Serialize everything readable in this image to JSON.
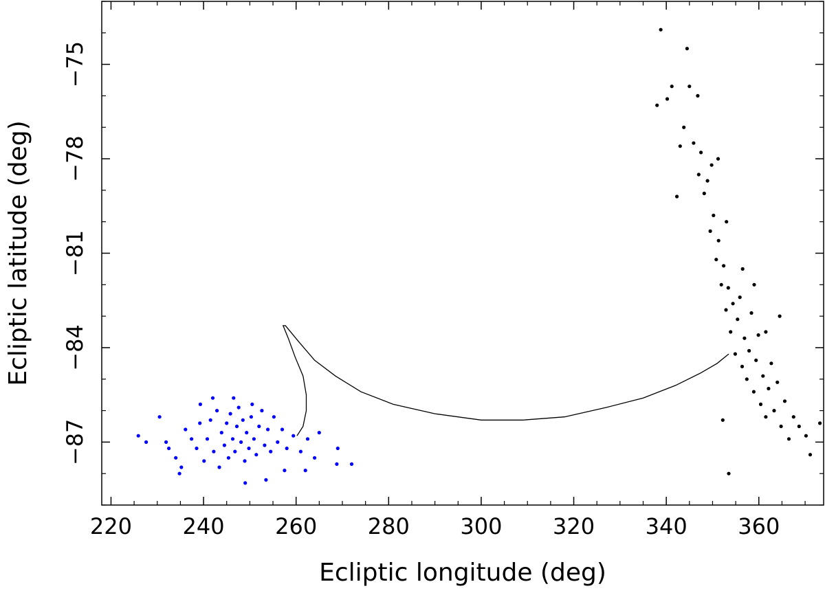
{
  "chart_data": {
    "type": "scatter",
    "title": "",
    "xlabel": "Ecliptic longitude (deg)",
    "ylabel": "Ecliptic latitude (deg)",
    "xlim": [
      218,
      374
    ],
    "ylim": [
      -89.0,
      -73.0
    ],
    "y_inverted": true,
    "grid": false,
    "xticks": [
      220,
      240,
      260,
      280,
      300,
      320,
      340,
      360
    ],
    "xtick_labels": [
      "220",
      "240",
      "260",
      "280",
      "300",
      "320",
      "340",
      "360"
    ],
    "yticks": [
      -75,
      -78,
      -81,
      -84,
      -87
    ],
    "ytick_labels": [
      "−75",
      "−78",
      "−81",
      "−84",
      "−87"
    ],
    "colors": {
      "blue_cluster": "#0000ff",
      "black_cluster": "#000000",
      "track": "#000000"
    },
    "series": [
      {
        "kind": "points",
        "color": "#0000ff",
        "points": [
          [
            225.9,
            -86.8
          ],
          [
            227.6,
            -87.0
          ],
          [
            231.9,
            -87.0
          ],
          [
            232.5,
            -87.2
          ],
          [
            234.0,
            -87.5
          ],
          [
            235.2,
            -87.8
          ],
          [
            236.1,
            -86.6
          ],
          [
            237.4,
            -86.9
          ],
          [
            238.5,
            -87.2
          ],
          [
            239.2,
            -86.4
          ],
          [
            240.1,
            -87.6
          ],
          [
            240.8,
            -86.9
          ],
          [
            241.5,
            -86.3
          ],
          [
            242.2,
            -87.3
          ],
          [
            242.9,
            -86.0
          ],
          [
            243.4,
            -87.8
          ],
          [
            243.9,
            -86.7
          ],
          [
            244.5,
            -87.1
          ],
          [
            245.0,
            -86.4
          ],
          [
            245.4,
            -87.5
          ],
          [
            245.8,
            -86.1
          ],
          [
            246.3,
            -86.9
          ],
          [
            246.8,
            -87.3
          ],
          [
            247.2,
            -86.5
          ],
          [
            247.6,
            -85.9
          ],
          [
            248.1,
            -87.0
          ],
          [
            248.5,
            -86.3
          ],
          [
            248.9,
            -87.6
          ],
          [
            249.3,
            -86.7
          ],
          [
            249.8,
            -87.2
          ],
          [
            250.3,
            -86.2
          ],
          [
            250.9,
            -86.9
          ],
          [
            251.4,
            -87.4
          ],
          [
            252.0,
            -86.5
          ],
          [
            252.6,
            -86.0
          ],
          [
            253.2,
            -87.1
          ],
          [
            253.9,
            -86.6
          ],
          [
            254.5,
            -87.3
          ],
          [
            255.2,
            -86.2
          ],
          [
            256.0,
            -87.0
          ],
          [
            257.0,
            -86.6
          ],
          [
            258.0,
            -87.2
          ],
          [
            259.4,
            -86.8
          ],
          [
            261.0,
            -87.3
          ],
          [
            262.5,
            -86.9
          ],
          [
            264.0,
            -87.5
          ],
          [
            265.0,
            -86.7
          ],
          [
            269.0,
            -87.2
          ],
          [
            272.0,
            -87.7
          ],
          [
            268.8,
            -87.7
          ],
          [
            239.3,
            -85.8
          ],
          [
            242.0,
            -85.6
          ],
          [
            246.5,
            -85.6
          ],
          [
            250.5,
            -85.8
          ],
          [
            234.8,
            -88.0
          ],
          [
            249.0,
            -88.3
          ],
          [
            253.5,
            -88.2
          ],
          [
            257.5,
            -87.9
          ],
          [
            262.0,
            -87.9
          ],
          [
            230.5,
            -86.2
          ]
        ]
      },
      {
        "kind": "points",
        "color": "#000000",
        "points": [
          [
            338.0,
            -76.3
          ],
          [
            338.8,
            -73.9
          ],
          [
            340.2,
            -76.1
          ],
          [
            341.2,
            -75.7
          ],
          [
            342.3,
            -79.2
          ],
          [
            343.0,
            -77.6
          ],
          [
            343.8,
            -77.0
          ],
          [
            344.5,
            -74.5
          ],
          [
            345.0,
            -75.7
          ],
          [
            345.9,
            -77.5
          ],
          [
            346.8,
            -76.0
          ],
          [
            347.5,
            -77.8
          ],
          [
            348.2,
            -79.1
          ],
          [
            348.9,
            -78.7
          ],
          [
            349.5,
            -80.3
          ],
          [
            350.2,
            -79.8
          ],
          [
            350.8,
            -81.2
          ],
          [
            351.3,
            -80.6
          ],
          [
            351.9,
            -82.0
          ],
          [
            352.4,
            -81.4
          ],
          [
            352.9,
            -82.8
          ],
          [
            353.4,
            -82.1
          ],
          [
            353.9,
            -83.5
          ],
          [
            354.4,
            -82.6
          ],
          [
            354.9,
            -84.2
          ],
          [
            355.4,
            -83.1
          ],
          [
            355.9,
            -82.4
          ],
          [
            356.4,
            -84.6
          ],
          [
            356.9,
            -83.7
          ],
          [
            357.4,
            -85.0
          ],
          [
            357.9,
            -84.1
          ],
          [
            358.4,
            -82.9
          ],
          [
            358.9,
            -85.4
          ],
          [
            359.4,
            -84.4
          ],
          [
            359.9,
            -83.6
          ],
          [
            360.4,
            -85.8
          ],
          [
            360.9,
            -84.9
          ],
          [
            361.5,
            -86.2
          ],
          [
            362.1,
            -85.3
          ],
          [
            362.7,
            -84.5
          ],
          [
            363.3,
            -86.0
          ],
          [
            364.0,
            -85.1
          ],
          [
            364.8,
            -86.5
          ],
          [
            365.6,
            -85.7
          ],
          [
            366.5,
            -86.9
          ],
          [
            367.5,
            -86.2
          ],
          [
            368.7,
            -86.5
          ],
          [
            370.2,
            -86.8
          ],
          [
            371.1,
            -87.4
          ],
          [
            373.2,
            -86.4
          ],
          [
            352.2,
            -86.3
          ],
          [
            353.5,
            -88.0
          ],
          [
            347.0,
            -78.5
          ],
          [
            349.8,
            -78.2
          ],
          [
            351.2,
            -78.0
          ],
          [
            353.0,
            -80.0
          ],
          [
            356.5,
            -81.5
          ],
          [
            359.0,
            -82.0
          ],
          [
            361.5,
            -83.5
          ],
          [
            364.5,
            -83.0
          ]
        ]
      },
      {
        "kind": "line",
        "color": "#000000",
        "points": [
          [
            260.2,
            -86.8
          ],
          [
            261.5,
            -86.5
          ],
          [
            262.2,
            -86.0
          ],
          [
            262.2,
            -85.5
          ],
          [
            261.5,
            -84.9
          ],
          [
            259.8,
            -84.3
          ],
          [
            258.3,
            -83.7
          ],
          [
            257.2,
            -83.3
          ],
          [
            257.7,
            -83.3
          ],
          [
            260.5,
            -83.8
          ],
          [
            264.0,
            -84.4
          ],
          [
            268.5,
            -84.9
          ],
          [
            274.0,
            -85.4
          ],
          [
            281.0,
            -85.8
          ],
          [
            290.0,
            -86.1
          ],
          [
            300.0,
            -86.3
          ],
          [
            309.0,
            -86.3
          ],
          [
            318.0,
            -86.2
          ],
          [
            327.0,
            -85.9
          ],
          [
            335.0,
            -85.6
          ],
          [
            342.0,
            -85.2
          ],
          [
            347.5,
            -84.8
          ],
          [
            351.0,
            -84.5
          ],
          [
            353.5,
            -84.2
          ]
        ]
      }
    ]
  }
}
